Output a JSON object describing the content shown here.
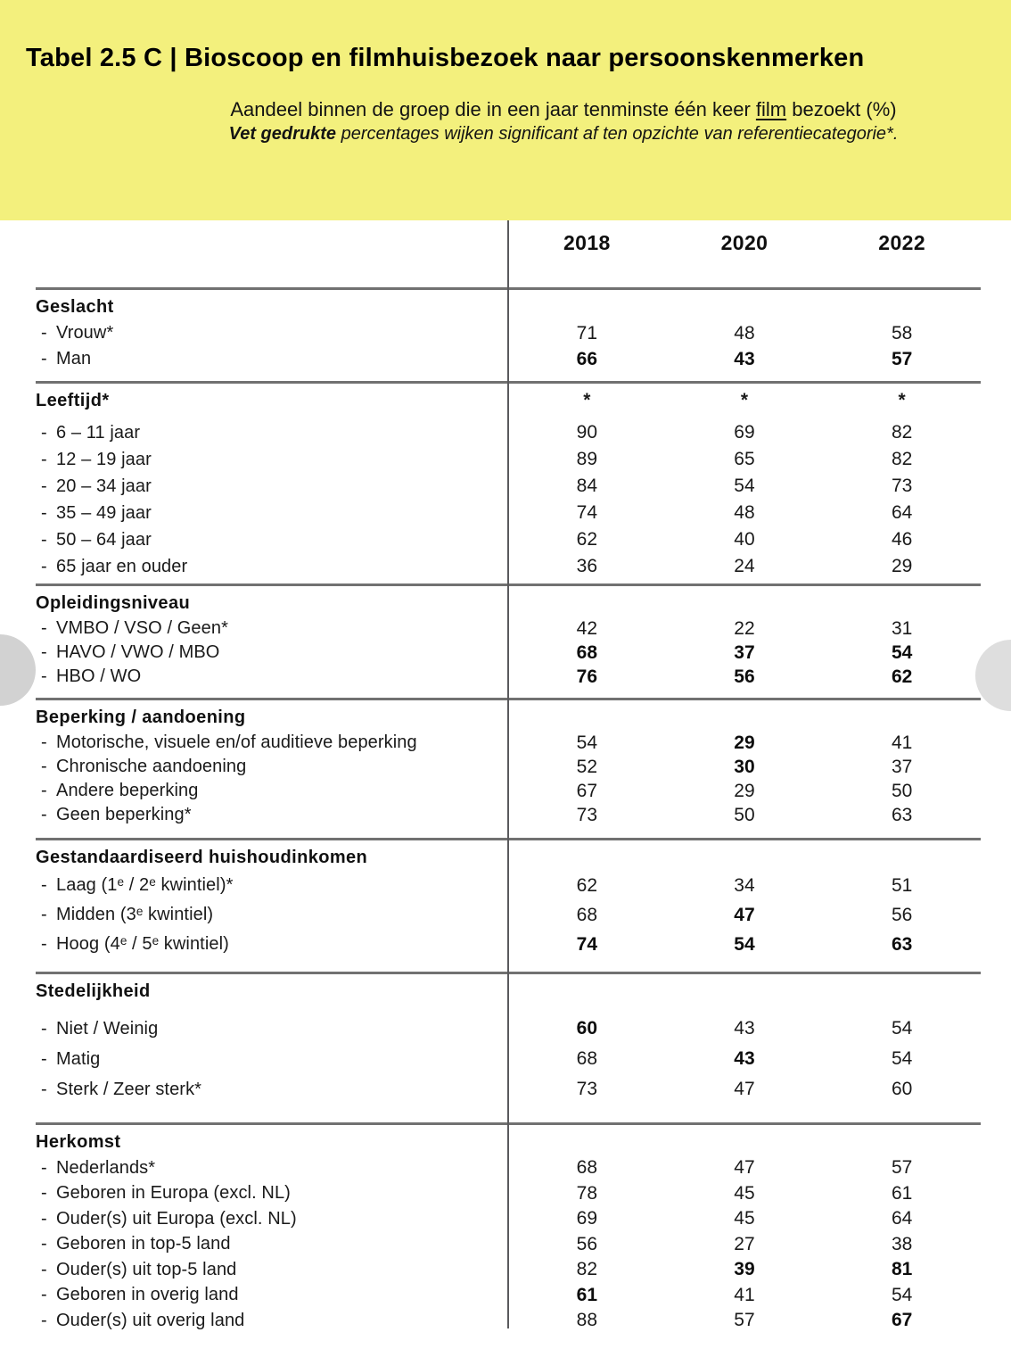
{
  "header": {
    "title": "Tabel 2.5 C | Bioscoop en filmhuisbezoek naar persoonskenmerken",
    "subtitle_pre": "Aandeel binnen de groep die in een jaar tenminste één keer ",
    "subtitle_underlined": "film",
    "subtitle_post": " bezoekt (%)",
    "note_bold_italic": "Vet gedrukte",
    "note_rest": " percentages wijken significant af ten opzichte van referentiecategorie*.",
    "band_color": "#f3f07d"
  },
  "table": {
    "year_columns": [
      "2018",
      "2020",
      "2022"
    ],
    "sections": [
      {
        "title": "Geslacht",
        "title_values": null,
        "rows": [
          {
            "label": "Vrouw*",
            "values": [
              "71",
              "48",
              "58"
            ],
            "bold": [
              false,
              false,
              false
            ]
          },
          {
            "label": "Man",
            "values": [
              "66",
              "43",
              "57"
            ],
            "bold": [
              true,
              true,
              true
            ]
          }
        ]
      },
      {
        "title": "Leeftijd*",
        "title_values": [
          "*",
          "*",
          "*"
        ],
        "rows": [
          {
            "label": "6 – 11 jaar",
            "values": [
              "90",
              "69",
              "82"
            ],
            "bold": [
              false,
              false,
              false
            ]
          },
          {
            "label": "12 – 19 jaar",
            "values": [
              "89",
              "65",
              "82"
            ],
            "bold": [
              false,
              false,
              false
            ]
          },
          {
            "label": "20 – 34 jaar",
            "values": [
              "84",
              "54",
              "73"
            ],
            "bold": [
              false,
              false,
              false
            ]
          },
          {
            "label": "35 – 49 jaar",
            "values": [
              "74",
              "48",
              "64"
            ],
            "bold": [
              false,
              false,
              false
            ]
          },
          {
            "label": "50 – 64 jaar",
            "values": [
              "62",
              "40",
              "46"
            ],
            "bold": [
              false,
              false,
              false
            ]
          },
          {
            "label": "65 jaar en ouder",
            "values": [
              "36",
              "24",
              "29"
            ],
            "bold": [
              false,
              false,
              false
            ]
          }
        ]
      },
      {
        "title": "Opleidingsniveau",
        "title_values": null,
        "rows": [
          {
            "label": "VMBO / VSO / Geen*",
            "values": [
              "42",
              "22",
              "31"
            ],
            "bold": [
              false,
              false,
              false
            ]
          },
          {
            "label": "HAVO / VWO / MBO",
            "values": [
              "68",
              "37",
              "54"
            ],
            "bold": [
              true,
              true,
              true
            ]
          },
          {
            "label": "HBO / WO",
            "values": [
              "76",
              "56",
              "62"
            ],
            "bold": [
              true,
              true,
              true
            ]
          }
        ]
      },
      {
        "title": "Beperking / aandoening",
        "title_values": null,
        "rows": [
          {
            "label": "Motorische, visuele en/of auditieve beperking",
            "values": [
              "54",
              "29",
              "41"
            ],
            "bold": [
              false,
              true,
              false
            ]
          },
          {
            "label": "Chronische aandoening",
            "values": [
              "52",
              "30",
              "37"
            ],
            "bold": [
              false,
              true,
              false
            ]
          },
          {
            "label": "Andere beperking",
            "values": [
              "67",
              "29",
              "50"
            ],
            "bold": [
              false,
              false,
              false
            ]
          },
          {
            "label": "Geen beperking*",
            "values": [
              "73",
              "50",
              "63"
            ],
            "bold": [
              false,
              false,
              false
            ]
          }
        ]
      },
      {
        "title": "Gestandaardiseerd huishoudinkomen",
        "title_values": null,
        "rows": [
          {
            "label": "Laag (1ᵉ / 2ᵉ kwintiel)*",
            "values": [
              "62",
              "34",
              "51"
            ],
            "bold": [
              false,
              false,
              false
            ]
          },
          {
            "label": "Midden (3ᵉ kwintiel)",
            "values": [
              "68",
              "47",
              "56"
            ],
            "bold": [
              false,
              true,
              false
            ]
          },
          {
            "label": "Hoog (4ᵉ / 5ᵉ kwintiel)",
            "values": [
              "74",
              "54",
              "63"
            ],
            "bold": [
              true,
              true,
              true
            ]
          }
        ]
      },
      {
        "title": "Stedelijkheid",
        "title_values": null,
        "rows": [
          {
            "label": "Niet / Weinig",
            "values": [
              "60",
              "43",
              "54"
            ],
            "bold": [
              true,
              false,
              false
            ]
          },
          {
            "label": "Matig",
            "values": [
              "68",
              "43",
              "54"
            ],
            "bold": [
              false,
              true,
              false
            ]
          },
          {
            "label": "Sterk / Zeer sterk*",
            "values": [
              "73",
              "47",
              "60"
            ],
            "bold": [
              false,
              false,
              false
            ]
          }
        ]
      },
      {
        "title": "Herkomst",
        "title_values": null,
        "rows": [
          {
            "label": "Nederlands*",
            "values": [
              "68",
              "47",
              "57"
            ],
            "bold": [
              false,
              false,
              false
            ]
          },
          {
            "label": "Geboren in Europa (excl. NL)",
            "values": [
              "78",
              "45",
              "61"
            ],
            "bold": [
              false,
              false,
              false
            ]
          },
          {
            "label": "Ouder(s) uit Europa (excl. NL)",
            "values": [
              "69",
              "45",
              "64"
            ],
            "bold": [
              false,
              false,
              false
            ]
          },
          {
            "label": "Geboren in top-5 land",
            "values": [
              "56",
              "27",
              "38"
            ],
            "bold": [
              false,
              false,
              false
            ]
          },
          {
            "label": "Ouder(s) uit top-5 land",
            "values": [
              "82",
              "39",
              "81"
            ],
            "bold": [
              false,
              true,
              true
            ]
          },
          {
            "label": "Geboren in overig land",
            "values": [
              "61",
              "41",
              "54"
            ],
            "bold": [
              true,
              false,
              false
            ]
          },
          {
            "label": "Ouder(s) uit overig land",
            "values": [
              "88",
              "57",
              "67"
            ],
            "bold": [
              false,
              false,
              true
            ]
          }
        ]
      }
    ]
  },
  "colors": {
    "band": "#f3f07d",
    "rule": "#717171",
    "divider": "#5a5a5d",
    "left_circle": "#d2d2d2",
    "right_circle": "#dedede"
  }
}
